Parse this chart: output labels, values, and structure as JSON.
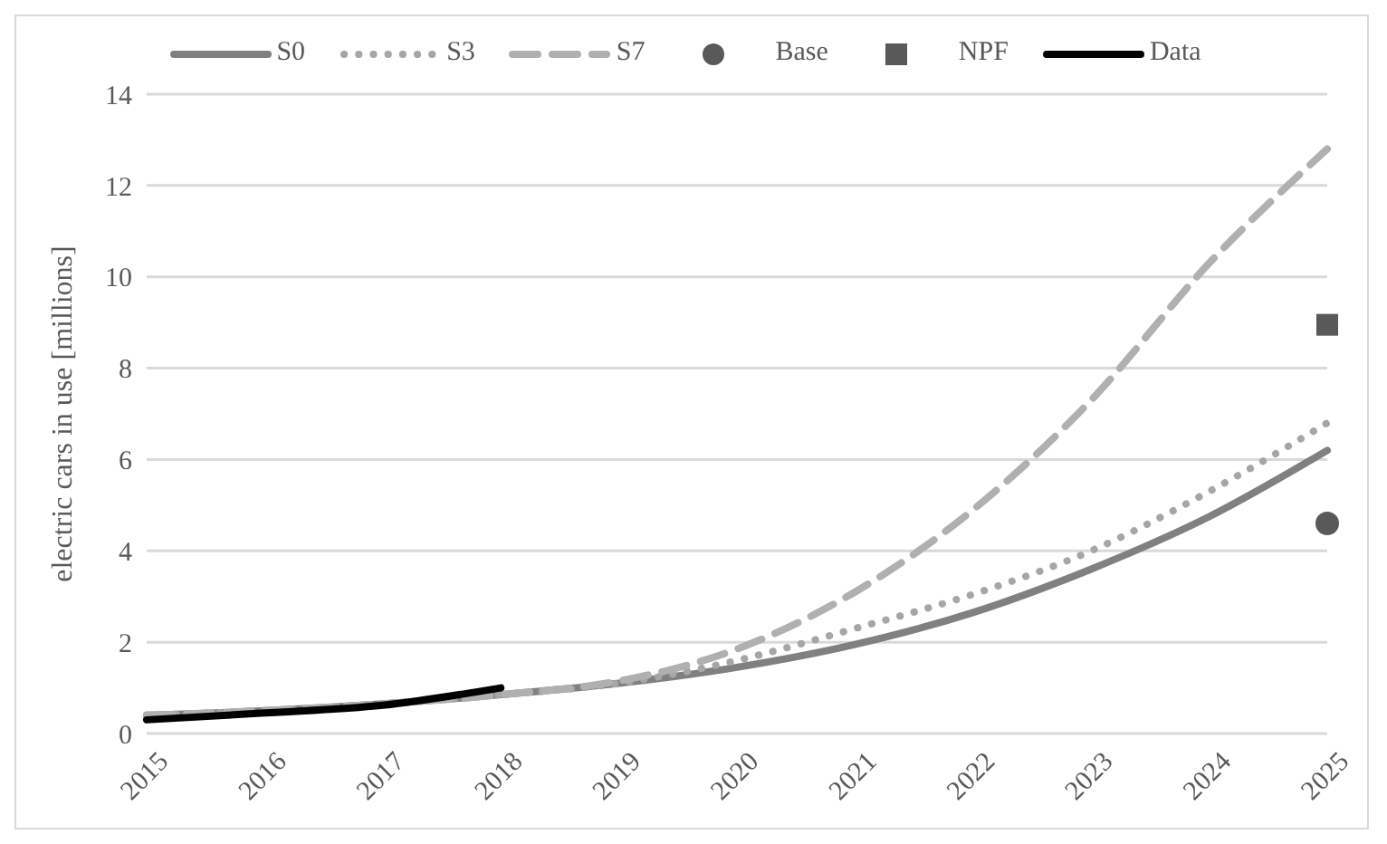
{
  "chart_data": {
    "type": "line",
    "ylabel": "electric cars in use [millions]",
    "categories": [
      "2015",
      "2016",
      "2017",
      "2018",
      "2019",
      "2020",
      "2021",
      "2022",
      "2023",
      "2024",
      "2025"
    ],
    "ylim": [
      0,
      14
    ],
    "yticks": [
      0,
      2,
      4,
      6,
      8,
      10,
      12,
      14
    ],
    "grid": "y",
    "legend": "top",
    "series": [
      {
        "name": "S0",
        "color": "#808080",
        "line_style": "solid",
        "marker": "none",
        "values": [
          0.4,
          0.5,
          0.65,
          0.85,
          1.1,
          1.45,
          1.95,
          2.65,
          3.6,
          4.75,
          6.2
        ]
      },
      {
        "name": "S3",
        "color": "#a6a6a6",
        "line_style": "dotted",
        "marker": "none",
        "values": [
          0.4,
          0.5,
          0.65,
          0.85,
          1.1,
          1.6,
          2.3,
          3.05,
          4.0,
          5.3,
          6.8
        ]
      },
      {
        "name": "S7",
        "color": "#b0b0b0",
        "line_style": "dashed",
        "marker": "none",
        "values": [
          0.4,
          0.5,
          0.65,
          0.85,
          1.15,
          1.85,
          3.1,
          4.9,
          7.3,
          10.3,
          12.8
        ]
      },
      {
        "name": "Base",
        "type": "scatter",
        "color": "#595959",
        "marker": "circle",
        "values": [
          null,
          null,
          null,
          null,
          null,
          null,
          null,
          null,
          null,
          null,
          4.6
        ]
      },
      {
        "name": "NPF",
        "type": "scatter",
        "color": "#595959",
        "marker": "square",
        "values": [
          null,
          null,
          null,
          null,
          null,
          null,
          null,
          null,
          null,
          null,
          8.95
        ]
      },
      {
        "name": "Data",
        "color": "#000000",
        "line_style": "solid",
        "marker": "none",
        "values": [
          0.3,
          0.45,
          0.62,
          1.0,
          null,
          null,
          null,
          null,
          null,
          null,
          null
        ]
      }
    ]
  }
}
